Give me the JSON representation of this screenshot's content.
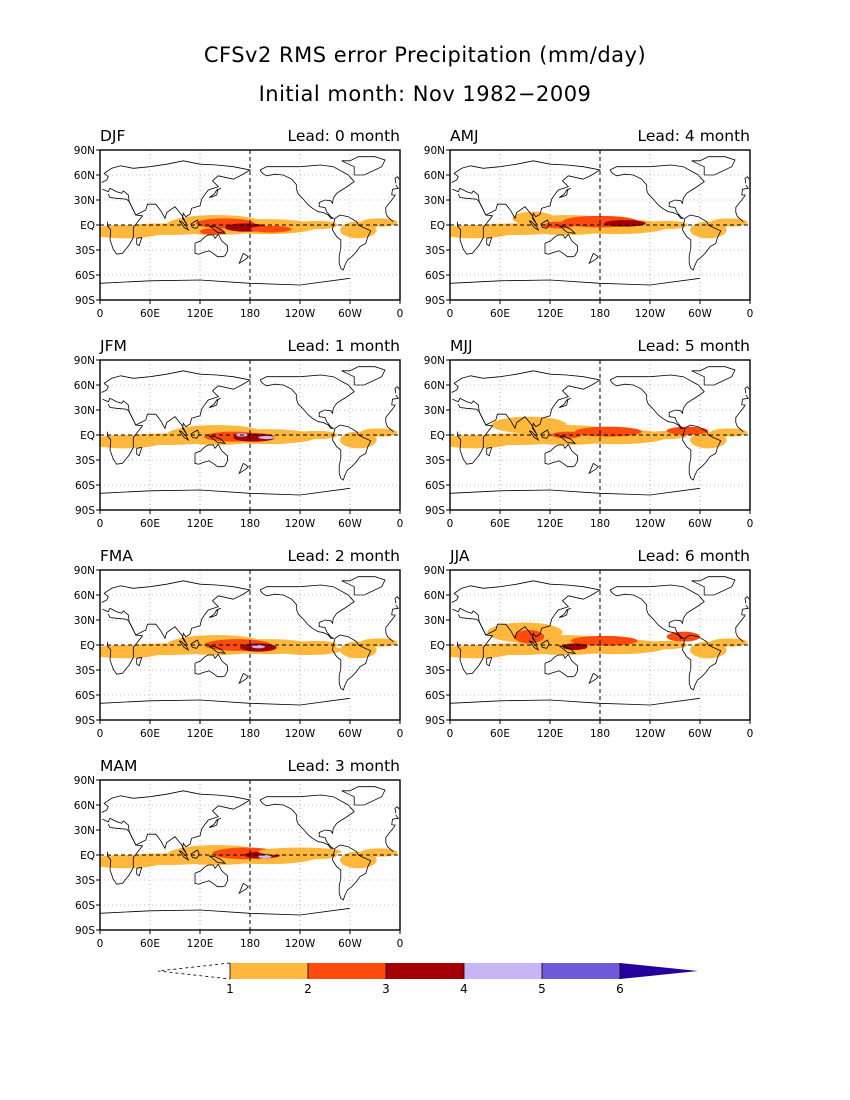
{
  "figure": {
    "title_line1": "CFSv2 RMS error Precipitation (mm/day)",
    "title_line2": "Initial month: Nov 1982−2009"
  },
  "axes": {
    "lat_labels": [
      "90N",
      "60N",
      "30N",
      "EQ",
      "30S",
      "60S",
      "90S"
    ],
    "lon_labels": [
      "0",
      "60E",
      "120E",
      "180",
      "120W",
      "60W",
      "0"
    ]
  },
  "panels": [
    {
      "season": "DJF",
      "lead": "Lead: 0 month",
      "lead_months": 0
    },
    {
      "season": "JFM",
      "lead": "Lead: 1 month",
      "lead_months": 1
    },
    {
      "season": "FMA",
      "lead": "Lead: 2 month",
      "lead_months": 2
    },
    {
      "season": "MAM",
      "lead": "Lead: 3 month",
      "lead_months": 3
    },
    {
      "season": "AMJ",
      "lead": "Lead: 4 month",
      "lead_months": 4
    },
    {
      "season": "MJJ",
      "lead": "Lead: 5 month",
      "lead_months": 5
    },
    {
      "season": "JJA",
      "lead": "Lead: 6 month",
      "lead_months": 6
    }
  ],
  "colorbar": {
    "levels": [
      "1",
      "2",
      "3",
      "4",
      "5",
      "6"
    ],
    "colors": [
      "#ffb83c",
      "#ff4a0e",
      "#a30005",
      "#c8b5f5",
      "#6e5ad8",
      "#26009c"
    ]
  },
  "colors": {
    "land_outline": "#000000",
    "grid": "#888888",
    "reference_lines": "#000000"
  }
}
